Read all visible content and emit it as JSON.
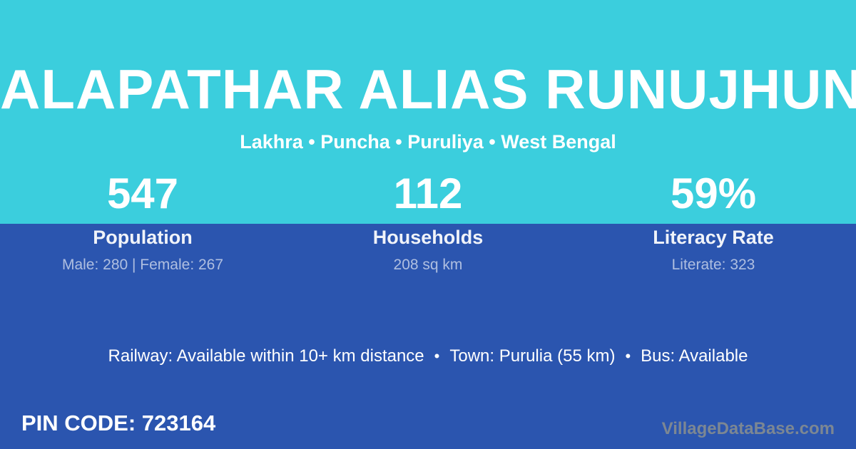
{
  "card": {
    "village_name": "ALAPATHAR ALIAS RUNUJHUN",
    "location": "Lakhra • Puncha • Puruliya • West Bengal",
    "stats": [
      {
        "value": "547",
        "label": "Population",
        "detail": "Male: 280 | Female: 267"
      },
      {
        "value": "112",
        "label": "Households",
        "detail": "208 sq km"
      },
      {
        "value": "59%",
        "label": "Literacy Rate",
        "detail": "Literate: 323"
      }
    ],
    "amenities": {
      "items": [
        "Railway: Available within 10+ km distance",
        "Town: Purulia (55 km)",
        "Bus: Available"
      ],
      "separator": "•"
    },
    "pin_code": "PIN CODE: 723164",
    "watermark": "VillageDataBase.com"
  },
  "colors": {
    "top_band": "#3BCEDD",
    "bottom_band": "#2B55AF",
    "primary_text": "#FFFFFF",
    "detail_text": "rgba(255,255,255,0.62)",
    "watermark_text": "#7C8793"
  }
}
